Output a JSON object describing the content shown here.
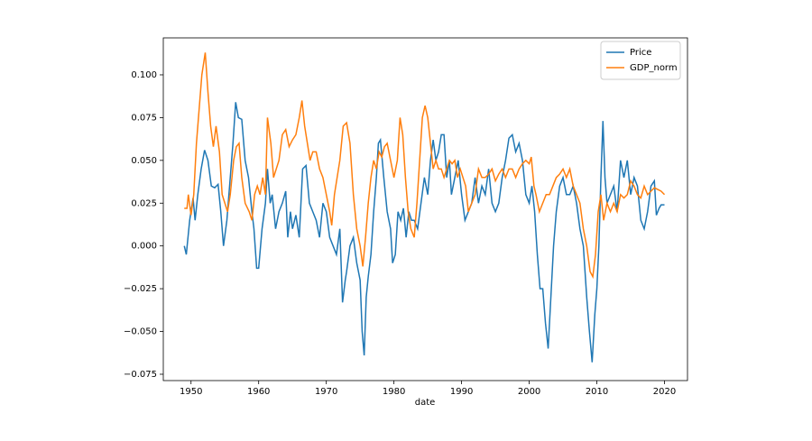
{
  "chart_data": {
    "type": "line",
    "xlabel": "date",
    "xlim": [
      1945.9,
      2023.4
    ],
    "xticks": [
      1950,
      1960,
      1970,
      1980,
      1990,
      2000,
      2010,
      2020
    ],
    "ylim": [
      -0.0787,
      0.1216
    ],
    "yticks": [
      {
        "value": -0.075,
        "label": "−0.075"
      },
      {
        "value": -0.05,
        "label": "−0.050"
      },
      {
        "value": -0.025,
        "label": "−0.025"
      },
      {
        "value": 0,
        "label": "0.000"
      },
      {
        "value": 0.025,
        "label": "0.025"
      },
      {
        "value": 0.05,
        "label": "0.050"
      },
      {
        "value": 0.075,
        "label": "0.075"
      },
      {
        "value": 0.1,
        "label": "0.100"
      }
    ],
    "grid": false,
    "legend": "upper right",
    "series": [
      {
        "name": "Price",
        "color": "#1f77b4",
        "x": [
          1949.0,
          1949.3,
          1949.8,
          1950.3,
          1950.6,
          1951,
          1951.5,
          1952,
          1952.5,
          1953,
          1953.5,
          1954,
          1954.4,
          1954.8,
          1955.3,
          1955.8,
          1956.2,
          1956.6,
          1957,
          1957.5,
          1958,
          1958.5,
          1959,
          1959.3,
          1959.7,
          1960,
          1960.5,
          1961,
          1961.3,
          1961.7,
          1962,
          1962.5,
          1963,
          1963.5,
          1964,
          1964.3,
          1964.7,
          1965,
          1965.5,
          1966,
          1966.5,
          1967,
          1967.5,
          1968,
          1968.5,
          1969,
          1969.5,
          1970,
          1970.5,
          1971,
          1971.5,
          1972,
          1972.4,
          1972.8,
          1973,
          1973.5,
          1974,
          1974.5,
          1975,
          1975.3,
          1975.6,
          1975.9,
          1976.2,
          1976.6,
          1977,
          1977.4,
          1977.7,
          1978,
          1978.5,
          1979,
          1979.5,
          1979.8,
          1980.2,
          1980.6,
          1981,
          1981.4,
          1981.8,
          1982.2,
          1982.6,
          1983,
          1983.5,
          1984,
          1984.5,
          1985,
          1985.4,
          1985.8,
          1986.2,
          1986.6,
          1987,
          1987.4,
          1987.8,
          1988.2,
          1988.5,
          1989,
          1989.5,
          1990,
          1990.5,
          1991,
          1991.5,
          1992,
          1992.5,
          1993,
          1993.5,
          1994,
          1994.5,
          1995,
          1995.5,
          1996,
          1996.5,
          1997,
          1997.5,
          1998,
          1998.5,
          1999,
          1999.5,
          2000,
          2000.4,
          2000.8,
          2001.2,
          2001.6,
          2002,
          2002.4,
          2002.8,
          2003.2,
          2003.6,
          2004,
          2004.5,
          2005,
          2005.5,
          2006,
          2006.5,
          2007,
          2007.5,
          2008,
          2008.5,
          2008.9,
          2009.3,
          2009.7,
          2010,
          2010.3,
          2010.6,
          2010.9,
          2011.2,
          2011.5,
          2012,
          2012.5,
          2013,
          2013.5,
          2014,
          2014.5,
          2015,
          2015.5,
          2016,
          2016.5,
          2017,
          2017.5,
          2018,
          2018.5,
          2018.8,
          2019.2,
          2019.5,
          2020
        ],
        "values": [
          0.0,
          -0.005,
          0.015,
          0.028,
          0.015,
          0.03,
          0.045,
          0.056,
          0.05,
          0.035,
          0.034,
          0.036,
          0.02,
          0.0,
          0.015,
          0.04,
          0.06,
          0.084,
          0.075,
          0.074,
          0.05,
          0.04,
          0.02,
          0.01,
          -0.013,
          -0.013,
          0.01,
          0.025,
          0.045,
          0.025,
          0.03,
          0.01,
          0.02,
          0.025,
          0.032,
          0.005,
          0.02,
          0.01,
          0.018,
          0.005,
          0.045,
          0.047,
          0.025,
          0.02,
          0.015,
          0.005,
          0.025,
          0.02,
          0.005,
          0.0,
          -0.005,
          0.01,
          -0.033,
          -0.02,
          -0.015,
          0.0,
          0.005,
          -0.01,
          -0.02,
          -0.05,
          -0.064,
          -0.03,
          -0.018,
          -0.005,
          0.02,
          0.04,
          0.06,
          0.062,
          0.04,
          0.02,
          0.01,
          -0.01,
          -0.005,
          0.02,
          0.015,
          0.022,
          0.005,
          0.02,
          0.015,
          0.015,
          0.01,
          0.025,
          0.04,
          0.03,
          0.05,
          0.062,
          0.05,
          0.055,
          0.065,
          0.065,
          0.04,
          0.05,
          0.03,
          0.04,
          0.05,
          0.03,
          0.015,
          0.02,
          0.025,
          0.04,
          0.025,
          0.035,
          0.03,
          0.045,
          0.025,
          0.02,
          0.025,
          0.04,
          0.05,
          0.063,
          0.065,
          0.055,
          0.06,
          0.05,
          0.03,
          0.025,
          0.035,
          0.02,
          -0.005,
          -0.025,
          -0.025,
          -0.045,
          -0.06,
          -0.03,
          0.0,
          0.02,
          0.035,
          0.04,
          0.03,
          0.03,
          0.035,
          0.025,
          0.01,
          0.0,
          -0.03,
          -0.05,
          -0.068,
          -0.04,
          -0.025,
          0.0,
          0.04,
          0.073,
          0.04,
          0.025,
          0.03,
          0.035,
          0.02,
          0.05,
          0.04,
          0.05,
          0.03,
          0.04,
          0.035,
          0.015,
          0.01,
          0.02,
          0.035,
          0.038,
          0.018,
          0.022,
          0.024,
          0.024
        ]
      },
      {
        "name": "GDP_norm",
        "color": "#ff7f0e",
        "x": [
          1949,
          1949.4,
          1949.6,
          1950,
          1950.4,
          1950.8,
          1951.2,
          1951.6,
          1952.1,
          1952.5,
          1952.9,
          1953.3,
          1953.7,
          1954.2,
          1954.6,
          1955,
          1955.4,
          1955.8,
          1956.3,
          1956.7,
          1957.1,
          1957.5,
          1958,
          1958.6,
          1959,
          1959.4,
          1959.8,
          1960.2,
          1960.6,
          1961,
          1961.3,
          1961.8,
          1962.2,
          1962.6,
          1963,
          1963.5,
          1964,
          1964.5,
          1965,
          1965.5,
          1966,
          1966.4,
          1966.8,
          1967.2,
          1967.6,
          1968,
          1968.5,
          1969,
          1969.5,
          1970,
          1970.5,
          1970.8,
          1971.2,
          1971.6,
          1972,
          1972.5,
          1973,
          1973.5,
          1974,
          1974.5,
          1975,
          1975.4,
          1975.8,
          1976.2,
          1976.6,
          1977,
          1977.4,
          1977.8,
          1978.2,
          1978.6,
          1979,
          1979.5,
          1980,
          1980.5,
          1980.9,
          1981.3,
          1981.7,
          1982.1,
          1982.5,
          1983,
          1983.4,
          1983.8,
          1984.2,
          1984.6,
          1985,
          1985.4,
          1985.8,
          1986.2,
          1986.6,
          1987,
          1987.4,
          1987.8,
          1988.2,
          1988.6,
          1989,
          1989.4,
          1989.8,
          1990.2,
          1990.6,
          1991,
          1991.5,
          1992,
          1992.5,
          1993,
          1993.5,
          1994,
          1994.5,
          1995,
          1995.5,
          1996,
          1996.5,
          1997,
          1997.5,
          1998,
          1998.5,
          1999,
          1999.5,
          2000,
          2000.3,
          2000.7,
          2001,
          2001.5,
          2002,
          2002.5,
          2003,
          2003.5,
          2004,
          2004.5,
          2005,
          2005.5,
          2006,
          2006.5,
          2007,
          2007.5,
          2008,
          2008.5,
          2009,
          2009.4,
          2009.8,
          2010.2,
          2010.6,
          2011,
          2011.5,
          2012,
          2012.5,
          2013,
          2013.5,
          2014,
          2014.5,
          2015,
          2015.5,
          2016,
          2016.5,
          2017,
          2017.5,
          2018,
          2018.5,
          2019,
          2019.5,
          2020
        ],
        "values": [
          0.022,
          0.022,
          0.03,
          0.018,
          0.03,
          0.06,
          0.08,
          0.1,
          0.113,
          0.09,
          0.07,
          0.058,
          0.07,
          0.055,
          0.03,
          0.025,
          0.02,
          0.03,
          0.05,
          0.058,
          0.06,
          0.04,
          0.025,
          0.02,
          0.015,
          0.03,
          0.035,
          0.03,
          0.04,
          0.03,
          0.075,
          0.06,
          0.04,
          0.045,
          0.05,
          0.065,
          0.068,
          0.058,
          0.062,
          0.065,
          0.075,
          0.085,
          0.07,
          0.06,
          0.05,
          0.055,
          0.055,
          0.045,
          0.04,
          0.03,
          0.02,
          0.012,
          0.03,
          0.04,
          0.05,
          0.07,
          0.072,
          0.06,
          0.03,
          0.01,
          0.0,
          -0.012,
          0.005,
          0.025,
          0.04,
          0.05,
          0.045,
          0.055,
          0.052,
          0.058,
          0.06,
          0.05,
          0.04,
          0.05,
          0.075,
          0.065,
          0.04,
          0.02,
          0.01,
          0.005,
          0.025,
          0.05,
          0.075,
          0.082,
          0.075,
          0.06,
          0.045,
          0.05,
          0.045,
          0.045,
          0.04,
          0.045,
          0.05,
          0.048,
          0.05,
          0.04,
          0.045,
          0.04,
          0.035,
          0.02,
          0.025,
          0.03,
          0.045,
          0.04,
          0.04,
          0.042,
          0.045,
          0.038,
          0.042,
          0.045,
          0.04,
          0.045,
          0.045,
          0.04,
          0.045,
          0.048,
          0.05,
          0.048,
          0.052,
          0.035,
          0.03,
          0.02,
          0.025,
          0.03,
          0.03,
          0.035,
          0.04,
          0.042,
          0.045,
          0.04,
          0.045,
          0.035,
          0.03,
          0.025,
          0.01,
          0.0,
          -0.015,
          -0.018,
          -0.005,
          0.02,
          0.03,
          0.015,
          0.025,
          0.02,
          0.025,
          0.02,
          0.03,
          0.028,
          0.03,
          0.038,
          0.035,
          0.03,
          0.028,
          0.035,
          0.03,
          0.032,
          0.034,
          0.033,
          0.032,
          0.03
        ]
      }
    ]
  }
}
